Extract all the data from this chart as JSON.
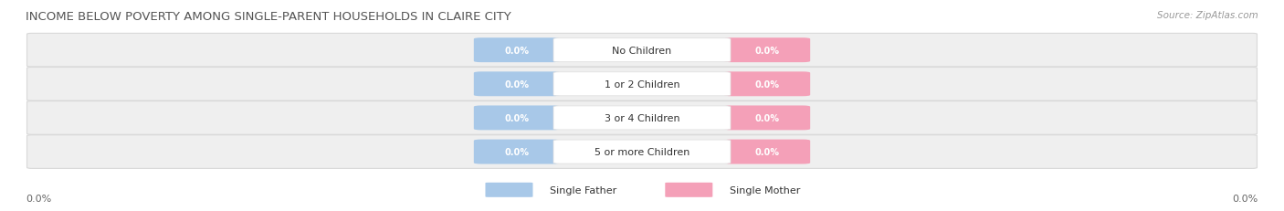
{
  "title": "INCOME BELOW POVERTY AMONG SINGLE-PARENT HOUSEHOLDS IN CLAIRE CITY",
  "source": "Source: ZipAtlas.com",
  "categories": [
    "No Children",
    "1 or 2 Children",
    "3 or 4 Children",
    "5 or more Children"
  ],
  "single_father_values": [
    0.0,
    0.0,
    0.0,
    0.0
  ],
  "single_mother_values": [
    0.0,
    0.0,
    0.0,
    0.0
  ],
  "father_color": "#a8c8e8",
  "mother_color": "#f4a0b8",
  "row_bg_color": "#efefef",
  "row_edge_color": "#d8d8d8",
  "center_box_color": "#ffffff",
  "center_box_edge": "#dddddd",
  "left_label": "0.0%",
  "right_label": "0.0%",
  "title_fontsize": 9.5,
  "source_fontsize": 7.5,
  "axis_label_fontsize": 8,
  "cat_fontsize": 8,
  "val_fontsize": 7,
  "background_color": "#ffffff",
  "title_color": "#555555",
  "source_color": "#999999",
  "axis_label_color": "#666666",
  "cat_text_color": "#333333",
  "val_text_color": "#ffffff"
}
